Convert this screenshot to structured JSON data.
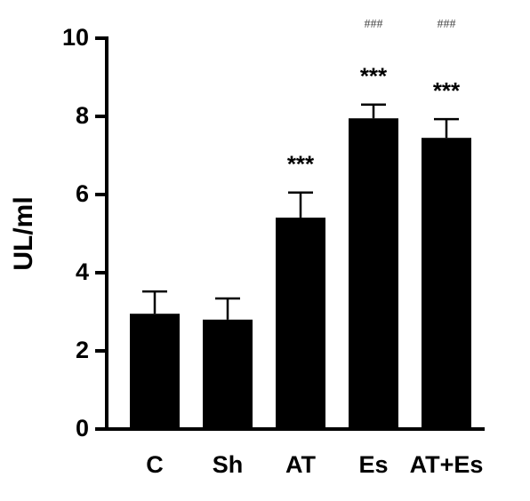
{
  "chart_data": {
    "type": "bar",
    "y_label": "UL/ml",
    "categories": [
      "C",
      "Sh",
      "AT",
      "Es",
      "AT+Es"
    ],
    "values": [
      2.95,
      2.8,
      5.41,
      7.95,
      7.45
    ],
    "errors": [
      0.57,
      0.54,
      0.64,
      0.35,
      0.48
    ],
    "stars": [
      null,
      null,
      "***",
      "***",
      "***"
    ],
    "hashes": [
      null,
      null,
      null,
      "###",
      "###"
    ],
    "color": "#000000",
    "ylim": [
      0,
      10
    ],
    "yticks": [
      0,
      2,
      4,
      6,
      8,
      10
    ]
  }
}
